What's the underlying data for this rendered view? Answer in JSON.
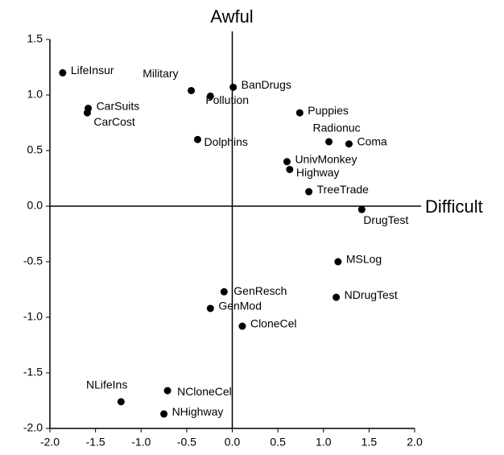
{
  "chart_data": {
    "type": "scatter",
    "x_label": "Difficult",
    "y_label": "Awful",
    "point_labels": [
      "LifeInsur",
      "CarSuits",
      "CarCost",
      "Military",
      "BanDrugs",
      "Pollution",
      "Puppies",
      "Radionuc",
      "Coma",
      "Dolphins",
      "UnivMonkey",
      "Highway",
      "TreeTrade",
      "DrugTest",
      "MSLog",
      "NDrugTest",
      "GenResch",
      "GenMod",
      "CloneCel",
      "NLifeIns",
      "NCloneCel",
      "NHighway"
    ],
    "x": [
      -1.86,
      -1.58,
      -1.59,
      -0.45,
      0.01,
      -0.24,
      0.74,
      1.06,
      1.28,
      -0.38,
      0.6,
      0.63,
      0.84,
      1.42,
      1.16,
      1.14,
      -0.09,
      -0.24,
      0.11,
      -1.22,
      -0.71,
      -0.75
    ],
    "values": [
      1.2,
      0.88,
      0.84,
      1.04,
      1.07,
      0.99,
      0.84,
      0.58,
      0.56,
      0.6,
      0.4,
      0.33,
      0.13,
      -0.03,
      -0.5,
      -0.82,
      -0.77,
      -0.92,
      -1.08,
      -1.76,
      -1.66,
      -1.87
    ],
    "color": "#000000",
    "xlim": [
      -2.0,
      2.0
    ],
    "xticks": [
      {
        "value": -2.0,
        "label": "-2.0"
      },
      {
        "value": -1.5,
        "label": "-1.5"
      },
      {
        "value": -1.0,
        "label": "-1.0"
      },
      {
        "value": -0.5,
        "label": "-0.5"
      },
      {
        "value": 0,
        "label": "0.0"
      },
      {
        "value": 0.5,
        "label": "0.5"
      },
      {
        "value": 1.0,
        "label": "1.0"
      },
      {
        "value": 1.5,
        "label": "1.5"
      },
      {
        "value": 2.0,
        "label": "2.0"
      }
    ],
    "ylim": [
      -2.0,
      1.5
    ],
    "yticks": [
      {
        "value": -2.0,
        "label": "-2.0"
      },
      {
        "value": -1.5,
        "label": "-1.5"
      },
      {
        "value": -1.0,
        "label": "-1.0"
      },
      {
        "value": -0.5,
        "label": "-0.5"
      },
      {
        "value": 0,
        "label": "0.0"
      },
      {
        "value": 0.5,
        "label": "0.5"
      },
      {
        "value": 1.0,
        "label": "1.0"
      },
      {
        "value": 1.5,
        "label": "1.5"
      }
    ]
  }
}
